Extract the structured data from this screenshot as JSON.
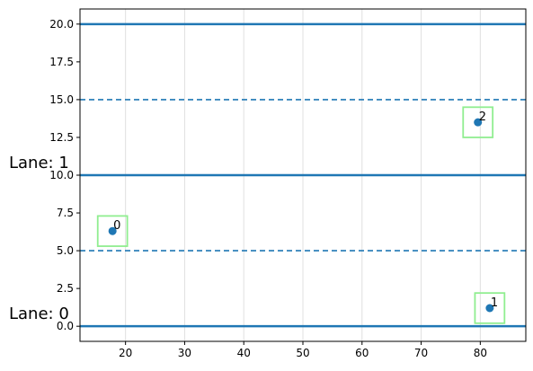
{
  "chart_data": {
    "type": "scatter",
    "title": "",
    "xlabel": "",
    "ylabel": "",
    "xlim": [
      12.3,
      87.7
    ],
    "ylim": [
      -1.0,
      21.0
    ],
    "xticks": [
      20,
      30,
      40,
      50,
      60,
      70,
      80
    ],
    "xtick_labels": [
      "20",
      "30",
      "40",
      "50",
      "60",
      "70",
      "80"
    ],
    "yticks": [
      0.0,
      2.5,
      5.0,
      7.5,
      10.0,
      12.5,
      15.0,
      17.5,
      20.0
    ],
    "ytick_labels": [
      "0.0",
      "2.5",
      "5.0",
      "7.5",
      "10.0",
      "12.5",
      "15.0",
      "17.5",
      "20.0"
    ],
    "grid": "x",
    "lane_boundaries": [
      0,
      10,
      20
    ],
    "lane_centers": [
      5,
      15
    ],
    "lanes": [
      {
        "label": "Lane: 0",
        "y": 0
      },
      {
        "label": "Lane: 1",
        "y": 10
      }
    ],
    "points": [
      {
        "label": "0",
        "x": 17.8,
        "y": 6.3
      },
      {
        "label": "1",
        "x": 81.6,
        "y": 1.2
      },
      {
        "label": "2",
        "x": 79.6,
        "y": 13.5
      }
    ],
    "box_width": 5.0,
    "box_height": 2.0,
    "colors": {
      "point": "#1f77b4",
      "lane_line": "#1f77b4",
      "box": "#90ee90",
      "grid": "#e0e0e0",
      "axes": "#000000"
    }
  }
}
